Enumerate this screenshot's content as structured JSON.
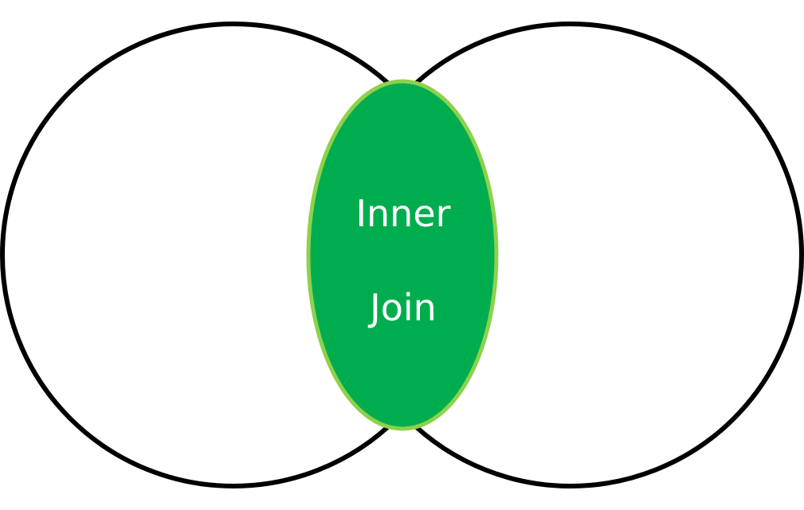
{
  "diagram": {
    "left_set": "",
    "right_set": "",
    "intersection": {
      "line1": "Inner",
      "line2": "Join"
    }
  },
  "colors": {
    "intersection_fill": "#00ad4e",
    "intersection_stroke": "#8ed14c",
    "circle_stroke": "#000000",
    "background": "#ffffff"
  }
}
